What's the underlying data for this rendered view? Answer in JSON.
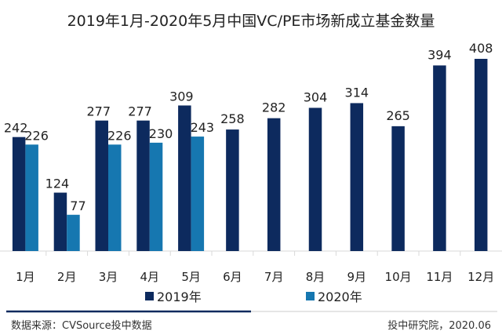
{
  "chart_data": {
    "type": "bar",
    "title": "2019年1月-2020年5月中国VC/PE市场新成立基金数量",
    "categories": [
      "1月",
      "2月",
      "3月",
      "4月",
      "5月",
      "6月",
      "7月",
      "8月",
      "9月",
      "10月",
      "11月",
      "12月"
    ],
    "series": [
      {
        "name": "2019年",
        "color": "#0d2a5e",
        "values": [
          242,
          124,
          277,
          277,
          309,
          258,
          282,
          304,
          314,
          265,
          394,
          408
        ]
      },
      {
        "name": "2020年",
        "color": "#1677b0",
        "values": [
          226,
          77,
          226,
          230,
          243,
          null,
          null,
          null,
          null,
          null,
          null,
          null
        ]
      }
    ],
    "ylim": [
      0,
      420
    ],
    "grid": false,
    "legend": "bottom",
    "xlabel": "",
    "ylabel": ""
  },
  "footer": {
    "source": "数据来源：CVSource投中数据",
    "credit": "投中研究院，2020.06"
  }
}
